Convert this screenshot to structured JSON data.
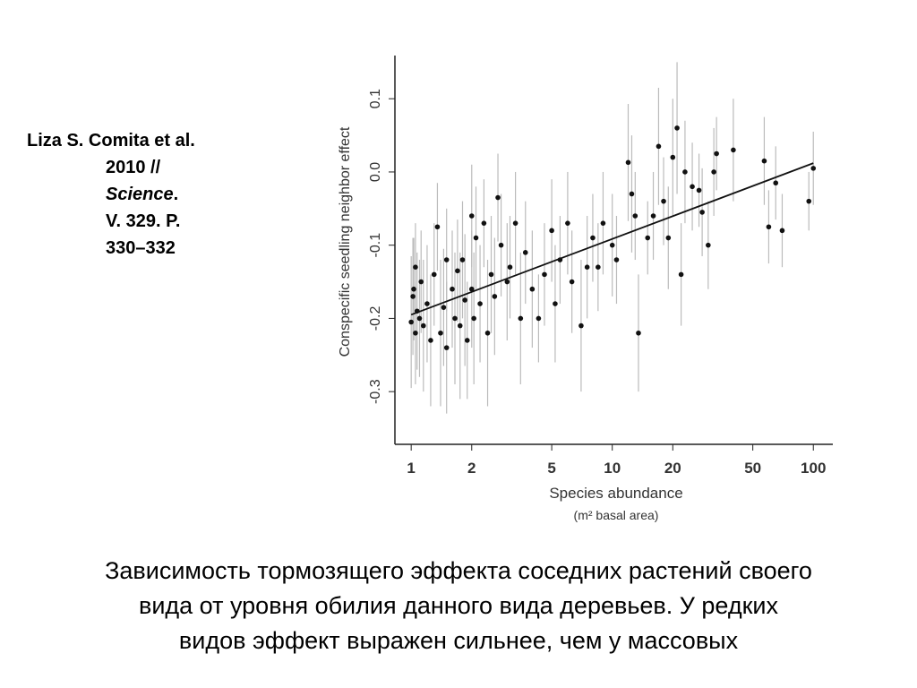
{
  "citation": {
    "authors": "Liza S. Comita et al.",
    "year": "2010 //",
    "journal": "Science",
    "journal_end": ".",
    "volume": "V. 329. P.",
    "pages": "330–332"
  },
  "caption": [
    "Зависимость тормозящего эффекта соседних растений своего",
    "вида от уровня обилия данного вида деревьев. У редких",
    "видов эффект выражен сильнее, чем у массовых"
  ],
  "chart_data": {
    "type": "scatter",
    "y_label": "Conspecific seedling neighbor effect",
    "x_label": "Species abundance",
    "x_label_sub": "(m² basal area)",
    "log_x": true,
    "xlim": [
      0.83,
      125
    ],
    "xticks": [
      1,
      2,
      5,
      10,
      20,
      50,
      100
    ],
    "ylim": [
      -0.372,
      0.159
    ],
    "yticks": [
      -0.3,
      -0.2,
      -0.1,
      {
        "value": 0,
        "label": "0.0"
      },
      0.1
    ],
    "point_color": "#111111",
    "error_color": "#bbbbbb",
    "trend_color": "#111111",
    "trend_line": {
      "x": [
        1,
        100
      ],
      "y": [
        -0.195,
        0.012
      ]
    },
    "series": [
      {
        "x": [
          1.0,
          1.02,
          1.03,
          1.05,
          1.05,
          1.07,
          1.1,
          1.12,
          1.15,
          1.2,
          1.25,
          1.3,
          1.35,
          1.4,
          1.45,
          1.5,
          1.5,
          1.6,
          1.65,
          1.7,
          1.75,
          1.8,
          1.85,
          1.9,
          2.0,
          2.0,
          2.05,
          2.1,
          2.2,
          2.3,
          2.4,
          2.5,
          2.6,
          2.7,
          2.8,
          3.0,
          3.1,
          3.3,
          3.5,
          3.7,
          4.0,
          4.3,
          4.6,
          5.0,
          5.2,
          5.5,
          6.0,
          6.3,
          7.0,
          7.5,
          8.0,
          8.5,
          9.0,
          10.0,
          10.5,
          12.0,
          12.5,
          13.0,
          13.5,
          15.0,
          16.0,
          17.0,
          18.0,
          19.0,
          20.0,
          21.0,
          22.0,
          23.0,
          25.0,
          27.0,
          28.0,
          30.0,
          32.0,
          33.0,
          40.0,
          57.0,
          60.0,
          65.0,
          70.0,
          95.0,
          100.0
        ],
        "y": [
          -0.205,
          -0.17,
          -0.16,
          -0.13,
          -0.22,
          -0.19,
          -0.2,
          -0.15,
          -0.21,
          -0.18,
          -0.23,
          -0.14,
          -0.075,
          -0.22,
          -0.185,
          -0.12,
          -0.24,
          -0.16,
          -0.2,
          -0.135,
          -0.21,
          -0.12,
          -0.175,
          -0.23,
          -0.06,
          -0.16,
          -0.2,
          -0.09,
          -0.18,
          -0.07,
          -0.22,
          -0.14,
          -0.17,
          -0.035,
          -0.1,
          -0.15,
          -0.13,
          -0.07,
          -0.2,
          -0.11,
          -0.16,
          -0.2,
          -0.14,
          -0.08,
          -0.18,
          -0.12,
          -0.07,
          -0.15,
          -0.21,
          -0.13,
          -0.09,
          -0.13,
          -0.07,
          -0.1,
          -0.12,
          0.013,
          -0.03,
          -0.06,
          -0.22,
          -0.09,
          -0.06,
          0.035,
          -0.04,
          -0.09,
          0.02,
          0.06,
          -0.14,
          0.0,
          -0.02,
          -0.025,
          -0.055,
          -0.1,
          0.0,
          0.025,
          0.03,
          0.015,
          -0.075,
          -0.015,
          -0.08,
          -0.04,
          0.005
        ],
        "errors": [
          0.09,
          0.08,
          0.07,
          0.06,
          0.07,
          0.08,
          0.08,
          0.07,
          0.09,
          0.08,
          0.09,
          0.07,
          0.06,
          0.1,
          0.08,
          0.07,
          0.09,
          0.08,
          0.09,
          0.07,
          0.1,
          0.08,
          0.09,
          0.08,
          0.07,
          0.08,
          0.09,
          0.07,
          0.08,
          0.06,
          0.1,
          0.08,
          0.08,
          0.06,
          0.07,
          0.08,
          0.07,
          0.07,
          0.09,
          0.07,
          0.08,
          0.06,
          0.07,
          0.07,
          0.08,
          0.06,
          0.07,
          0.07,
          0.09,
          0.07,
          0.06,
          0.06,
          0.07,
          0.07,
          0.06,
          0.08,
          0.08,
          0.06,
          0.08,
          0.05,
          0.06,
          0.08,
          0.06,
          0.07,
          0.08,
          0.09,
          0.07,
          0.07,
          0.06,
          0.05,
          0.06,
          0.06,
          0.06,
          0.05,
          0.07,
          0.06,
          0.05,
          0.05,
          0.05,
          0.04,
          0.05
        ]
      }
    ]
  }
}
